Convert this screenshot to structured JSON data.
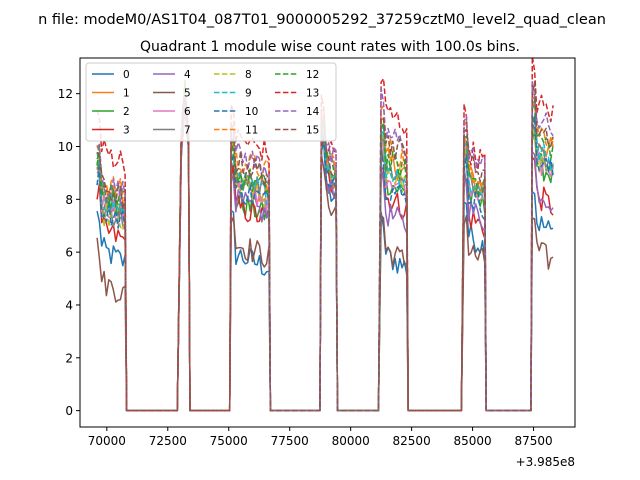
{
  "figure": {
    "suptitle": "n file: modeM0/AS1T04_087T01_9000005292_37259cztM0_level2_quad_clean",
    "title": "Quadrant 1 module wise count rates with 100.0s bins.",
    "offset_text": "+3.985e8"
  },
  "chart_data": {
    "type": "line",
    "title": "Quadrant 1 module wise count rates with 100.0s bins.",
    "xlabel": "",
    "ylabel": "",
    "x_offset": 398500000,
    "xlim": [
      68900,
      89200
    ],
    "ylim": [
      -0.62,
      13.35
    ],
    "xticks": [
      70000,
      72500,
      75000,
      77500,
      80000,
      82500,
      85000,
      87500
    ],
    "xtick_labels": [
      "70000",
      "72500",
      "75000",
      "77500",
      "80000",
      "82500",
      "85000",
      "87500"
    ],
    "yticks": [
      0,
      2,
      4,
      6,
      8,
      10,
      12
    ],
    "ytick_labels": [
      "0",
      "2",
      "4",
      "6",
      "8",
      "10",
      "12"
    ],
    "grid": false,
    "legend_position": "top-left",
    "legend_columns": 4,
    "segments": [
      {
        "x_start": 69600,
        "x_end": 70750,
        "gap_end": 72950
      },
      {
        "x_start": 73050,
        "x_end": 73350,
        "gap_end": 75100
      },
      {
        "x_start": 75100,
        "x_end": 76650,
        "gap_end": 78800
      },
      {
        "x_start": 78800,
        "x_end": 79400,
        "gap_end": 81200
      },
      {
        "x_start": 81250,
        "x_end": 82300,
        "gap_end": 84600
      },
      {
        "x_start": 84650,
        "x_end": 85500,
        "gap_end": 87450
      },
      {
        "x_start": 87450,
        "x_end": 88300,
        "gap_end": null
      }
    ],
    "series": [
      {
        "name": "0",
        "color": "#1f77b4",
        "dash": "solid",
        "levels": [
          6.2,
          12.0,
          6.0,
          8.6,
          6.0,
          6.8,
          7.3
        ]
      },
      {
        "name": "1",
        "color": "#ff7f0e",
        "dash": "solid",
        "levels": [
          8.4,
          12.0,
          8.8,
          9.4,
          9.6,
          9.0,
          10.4
        ]
      },
      {
        "name": "2",
        "color": "#2ca02c",
        "dash": "solid",
        "levels": [
          8.3,
          12.0,
          8.0,
          9.2,
          8.8,
          8.3,
          9.5
        ]
      },
      {
        "name": "3",
        "color": "#d62728",
        "dash": "solid",
        "levels": [
          7.0,
          12.0,
          7.8,
          9.0,
          8.2,
          7.5,
          8.3
        ]
      },
      {
        "name": "4",
        "color": "#9467bd",
        "dash": "solid",
        "levels": [
          7.8,
          12.0,
          8.0,
          9.0,
          7.6,
          7.8,
          8.5
        ]
      },
      {
        "name": "5",
        "color": "#8c564b",
        "dash": "solid",
        "levels": [
          5.0,
          12.0,
          6.4,
          8.2,
          6.2,
          6.2,
          6.2
        ]
      },
      {
        "name": "6",
        "color": "#e377c2",
        "dash": "solid",
        "levels": [
          8.0,
          12.0,
          8.6,
          9.8,
          9.0,
          8.8,
          9.6
        ]
      },
      {
        "name": "7",
        "color": "#7f7f7f",
        "dash": "solid",
        "levels": [
          7.8,
          12.0,
          8.9,
          9.4,
          9.3,
          8.8,
          9.8
        ]
      },
      {
        "name": "8",
        "color": "#bcbd22",
        "dash": "dashed",
        "levels": [
          7.6,
          12.0,
          8.6,
          9.6,
          9.2,
          8.7,
          9.5
        ]
      },
      {
        "name": "9",
        "color": "#17becf",
        "dash": "dashed",
        "levels": [
          8.2,
          12.0,
          8.8,
          9.6,
          9.3,
          8.8,
          10.0
        ]
      },
      {
        "name": "10",
        "color": "#1f77b4",
        "dash": "dashed",
        "levels": [
          7.8,
          12.0,
          8.5,
          9.3,
          8.6,
          8.3,
          9.6
        ]
      },
      {
        "name": "11",
        "color": "#ff7f0e",
        "dash": "dashed",
        "levels": [
          8.8,
          12.0,
          9.6,
          9.9,
          10.1,
          9.4,
          10.8
        ]
      },
      {
        "name": "12",
        "color": "#2ca02c",
        "dash": "dashed",
        "levels": [
          8.5,
          12.0,
          9.0,
          9.7,
          9.6,
          9.1,
          10.5
        ]
      },
      {
        "name": "13",
        "color": "#d62728",
        "dash": "dashed",
        "levels": [
          10.0,
          12.0,
          10.4,
          10.3,
          11.4,
          10.0,
          11.8
        ]
      },
      {
        "name": "14",
        "color": "#9467bd",
        "dash": "dashed",
        "levels": [
          8.8,
          12.0,
          9.8,
          10.0,
          10.6,
          9.8,
          11.2
        ]
      },
      {
        "name": "15",
        "color": "#8c564b",
        "dash": "dashed",
        "levels": [
          8.6,
          12.0,
          9.5,
          9.8,
          10.3,
          9.6,
          10.9
        ]
      }
    ]
  }
}
